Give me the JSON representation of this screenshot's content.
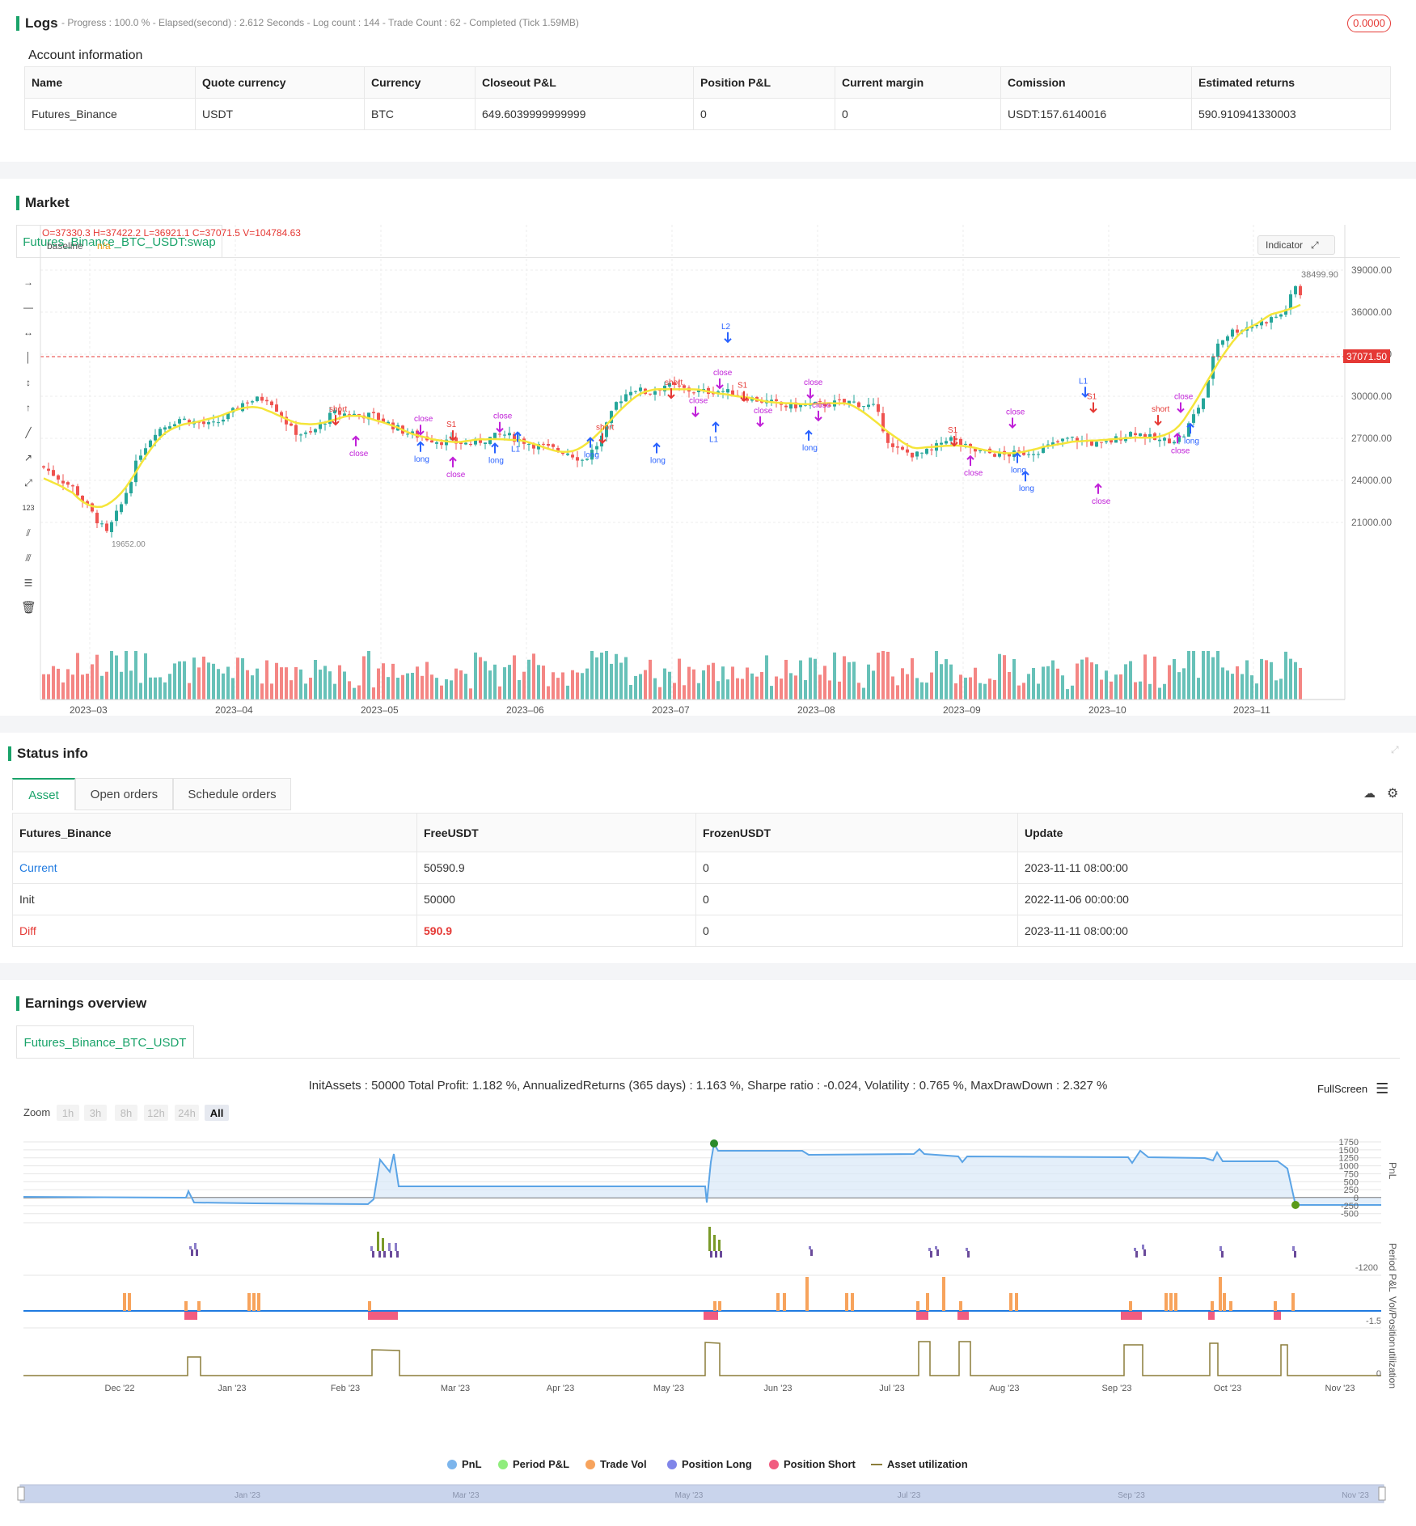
{
  "logs": {
    "title": "Logs",
    "summary": "- Progress : 100.0 % - Elapsed(second) : 2.612 Seconds - Log count : 144 - Trade Count : 62 - Completed (Tick 1.59MB)",
    "badge": "0.0000"
  },
  "account": {
    "title": "Account information",
    "headers": [
      "Name",
      "Quote currency",
      "Currency",
      "Closeout P&L",
      "Position P&L",
      "Current margin",
      "Comission",
      "Estimated returns"
    ],
    "row": [
      "Futures_Binance",
      "USDT",
      "BTC",
      "649.6039999999999",
      "0",
      "0",
      "USDT:157.6140016",
      "590.910941330003"
    ]
  },
  "market": {
    "title": "Market",
    "tab": "Futures_Binance_BTC_USDT:swap",
    "ohlc": "O=37330.3 H=37422.2 L=36921.1 C=37071.5 V=104784.63",
    "indicator_name": "baseline",
    "indicator_value": "n/a",
    "indicator_button": "Indicator",
    "price_high": "38499.90",
    "price_last": "37071.50",
    "price_low_label": "19652.00",
    "y_ticks": [
      "39000.00",
      "36000.00",
      "33000.00",
      "30000.00",
      "27000.00",
      "24000.00",
      "21000.00"
    ],
    "x_ticks": [
      "2023–03",
      "2023–04",
      "2023–05",
      "2023–06",
      "2023–07",
      "2023–08",
      "2023–09",
      "2023–10",
      "2023–11"
    ],
    "signal_labels": [
      "short",
      "S1",
      "close",
      "close",
      "long",
      "L1",
      "L2",
      "S2",
      "1"
    ],
    "colors": {
      "up": "#26a69a",
      "down": "#ef5350",
      "baseline": "#f5e53a",
      "long": "#2962ff",
      "close": "#c020d8",
      "short": "#e53935"
    }
  },
  "status": {
    "title": "Status info",
    "tabs": [
      "Asset",
      "Open orders",
      "Schedule orders"
    ],
    "headers": [
      "Futures_Binance",
      "FreeUSDT",
      "FrozenUSDT",
      "Update"
    ],
    "rows": [
      [
        "Current",
        "50590.9",
        "0",
        "2023-11-11 08:00:00"
      ],
      [
        "Init",
        "50000",
        "0",
        "2022-11-06 00:00:00"
      ],
      [
        "Diff",
        "590.9",
        "0",
        "2023-11-11 08:00:00"
      ]
    ]
  },
  "earnings": {
    "title": "Earnings overview",
    "tab": "Futures_Binance_BTC_USDT",
    "summary": "InitAssets : 50000 Total Profit: 1.182 %, AnnualizedReturns (365 days) : 1.163 %, Sharpe ratio : -0.024, Volatility : 0.765 %, MaxDrawDown : 2.327 %",
    "fullscreen": "FullScreen",
    "zoom_label": "Zoom",
    "zoom_buttons": [
      "1h",
      "3h",
      "8h",
      "12h",
      "24h",
      "All"
    ],
    "pnl_ticks": [
      "1750",
      "1500",
      "1250",
      "1000",
      "750",
      "500",
      "250",
      "0",
      "-250",
      "-500"
    ],
    "period_tick": "-1200",
    "vol_tick": "-1.5",
    "util_tick": "0",
    "axis_titles": [
      "PnL",
      "Period P&L",
      "Vol/Position",
      "utilization"
    ],
    "x_ticks": [
      "Dec '22",
      "Jan '23",
      "Feb '23",
      "Mar '23",
      "Apr '23",
      "May '23",
      "Jun '23",
      "Jul '23",
      "Aug '23",
      "Sep '23",
      "Oct '23",
      "Nov '23"
    ],
    "nav_ticks": [
      "Jan '23",
      "Mar '23",
      "May '23",
      "Jul '23",
      "Sep '23",
      "Nov '23"
    ],
    "legend": [
      {
        "label": "PnL",
        "color": "#7cb5ec"
      },
      {
        "label": "Period P&L",
        "color": "#90ed7d"
      },
      {
        "label": "Trade Vol",
        "color": "#f7a35c"
      },
      {
        "label": "Position Long",
        "color": "#8085e9"
      },
      {
        "label": "Position Short",
        "color": "#f15c80"
      },
      {
        "label": "Asset utilization",
        "color": "#8b7d3a"
      }
    ]
  }
}
